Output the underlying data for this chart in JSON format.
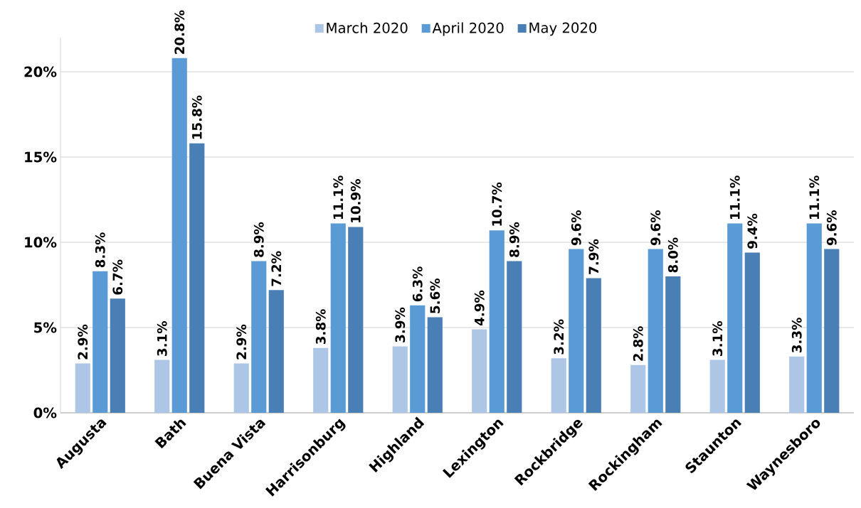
{
  "chart_data": {
    "type": "bar",
    "categories": [
      "Augusta",
      "Bath",
      "Buena Vista",
      "Harrisonburg",
      "Highland",
      "Lexington",
      "Rockbridge",
      "Rockingham",
      "Staunton",
      "Waynesboro"
    ],
    "series": [
      {
        "name": "March 2020",
        "color": "#aec6e6",
        "values": [
          2.9,
          3.1,
          2.9,
          3.8,
          3.9,
          4.9,
          3.2,
          2.8,
          3.1,
          3.3
        ],
        "value_labels": [
          "2.9%",
          "3.1%",
          "2.9%",
          "3.8%",
          "3.9%",
          "4.9%",
          "3.2%",
          "2.8%",
          "3.1%",
          "3.3%"
        ]
      },
      {
        "name": "April 2020",
        "color": "#5b9bd5",
        "values": [
          8.3,
          20.8,
          8.9,
          11.1,
          6.3,
          10.7,
          9.6,
          9.6,
          11.1,
          11.1
        ],
        "value_labels": [
          "8.3%",
          "20.8%",
          "8.9%",
          "11.1%",
          "6.3%",
          "10.7%",
          "9.6%",
          "9.6%",
          "11.1%",
          "11.1%"
        ]
      },
      {
        "name": "May 2020",
        "color": "#4a7fb5",
        "values": [
          6.7,
          15.8,
          7.2,
          10.9,
          5.6,
          8.9,
          7.9,
          8.0,
          9.4,
          9.6
        ],
        "value_labels": [
          "6.7%",
          "15.8%",
          "7.2%",
          "10.9%",
          "5.6%",
          "8.9%",
          "7.9%",
          "8.0%",
          "9.4%",
          "9.6%"
        ]
      }
    ],
    "ylim": [
      0,
      22
    ],
    "yticks": [
      {
        "value": 0,
        "label": "0%"
      },
      {
        "value": 5,
        "label": "5%"
      },
      {
        "value": 10,
        "label": "10%"
      },
      {
        "value": 15,
        "label": "15%"
      },
      {
        "value": 20,
        "label": "20%"
      }
    ],
    "grid": "y",
    "legend": "top"
  }
}
